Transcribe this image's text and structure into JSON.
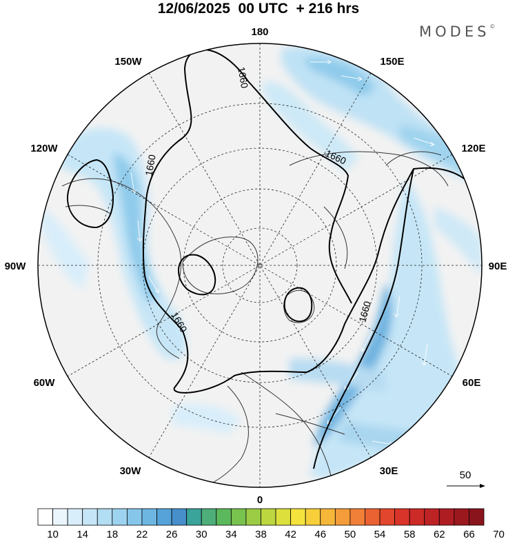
{
  "header": {
    "title": "12/06/2025  00 UTC  + 216 hrs",
    "brand": "MODES",
    "brand_mark": "©"
  },
  "map": {
    "projection": "north-polar-stereographic",
    "longitude_labels": [
      "180",
      "150E",
      "120E",
      "90E",
      "60E",
      "30E",
      "0",
      "30W",
      "60W",
      "90W",
      "120W",
      "150W"
    ],
    "contour_labels": [
      "1660",
      "1660",
      "1660",
      "1660",
      "1660"
    ],
    "reference_vector": {
      "label": "50"
    }
  },
  "colorbar": {
    "tick_labels": [
      "10",
      "14",
      "18",
      "22",
      "26",
      "30",
      "34",
      "38",
      "42",
      "46",
      "50",
      "54",
      "58",
      "62",
      "66",
      "70"
    ],
    "colors": [
      "#ffffff",
      "#eaf5fc",
      "#d8eefa",
      "#c6e6f7",
      "#b2ddf3",
      "#9dd3ef",
      "#86c6ea",
      "#6db6e2",
      "#55a3d8",
      "#468fca",
      "#3aa39a",
      "#4eae79",
      "#5cb85c",
      "#78c24e",
      "#9ccb45",
      "#bcd63f",
      "#dde03c",
      "#f5e33d",
      "#f7cf3a",
      "#f6b63a",
      "#f49c39",
      "#f07f37",
      "#ea6232",
      "#e2462d",
      "#d93429",
      "#cc2a27",
      "#bd2325",
      "#ad1d22",
      "#9c181f",
      "#8a141b"
    ]
  }
}
